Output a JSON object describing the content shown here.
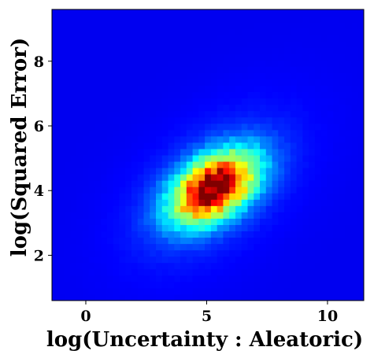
{
  "chart_data": {
    "type": "heatmap",
    "xlabel": "log(Uncertainty : Aleatoric)",
    "ylabel": "log(Squared Error)",
    "xlim": [
      -1.4,
      11.5
    ],
    "ylim": [
      0.6,
      9.6
    ],
    "x_ticks": [
      0,
      5,
      10
    ],
    "y_ticks": [
      2,
      4,
      6,
      8
    ],
    "x_tick_labels": [
      "0",
      "5",
      "10"
    ],
    "y_tick_labels": [
      "2",
      "4",
      "6",
      "8"
    ],
    "colormap": "jet",
    "grid": false,
    "density": {
      "peak_x": 5.3,
      "peak_y": 4.1,
      "sigma_x": 1.2,
      "sigma_y": 0.75,
      "correlation": 0.45,
      "bins_x": 51,
      "bins_y": 46
    }
  }
}
